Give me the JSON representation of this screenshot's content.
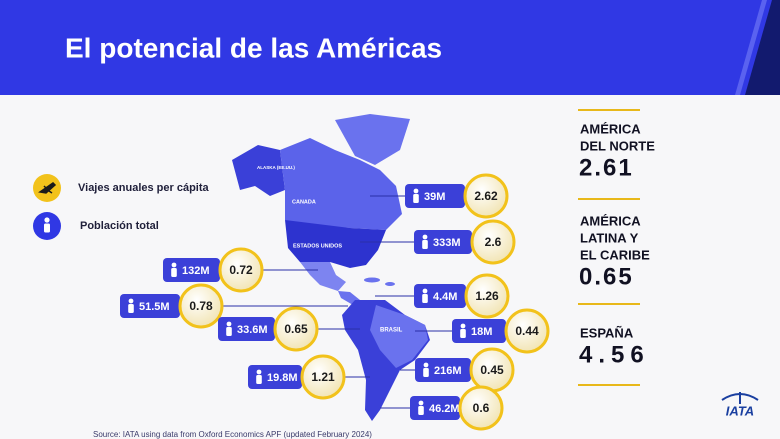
{
  "header": {
    "title": "El potencial de las Américas"
  },
  "legend": [
    {
      "label": "Viajes anuales per cápita"
    },
    {
      "label": "Población total"
    }
  ],
  "map_labels": [
    "ALASKA (EE.UU.)",
    "CANADA",
    "ESTADOS UNIDOS",
    "BRASIL"
  ],
  "callouts": [
    {
      "population": "39M",
      "trips": 2.62
    },
    {
      "population": "333M",
      "trips": 2.6
    },
    {
      "population": "132M",
      "trips": 0.72
    },
    {
      "population": "4.4M",
      "trips": 1.26
    },
    {
      "population": "51.5M",
      "trips": 0.78
    },
    {
      "population": "18M",
      "trips": 0.44
    },
    {
      "population": "33.6M",
      "trips": 0.65
    },
    {
      "population": "216M",
      "trips": 0.45
    },
    {
      "population": "19.8M",
      "trips": 1.21
    },
    {
      "population": "46.2M",
      "trips": 0.6
    }
  ],
  "summary": [
    {
      "region_lines": [
        "AMÉRICA",
        "DEL NORTE"
      ],
      "value": 2.61
    },
    {
      "region_lines": [
        "AMÉRICA",
        "LATINA Y",
        "EL CARIBE"
      ],
      "value": 0.65
    },
    {
      "region_lines": [
        "ESPAÑA"
      ],
      "value": 4.56
    }
  ],
  "source": "Source: IATA using data from Oxford Economics APF (updated February 2024)",
  "logo": "IATA"
}
